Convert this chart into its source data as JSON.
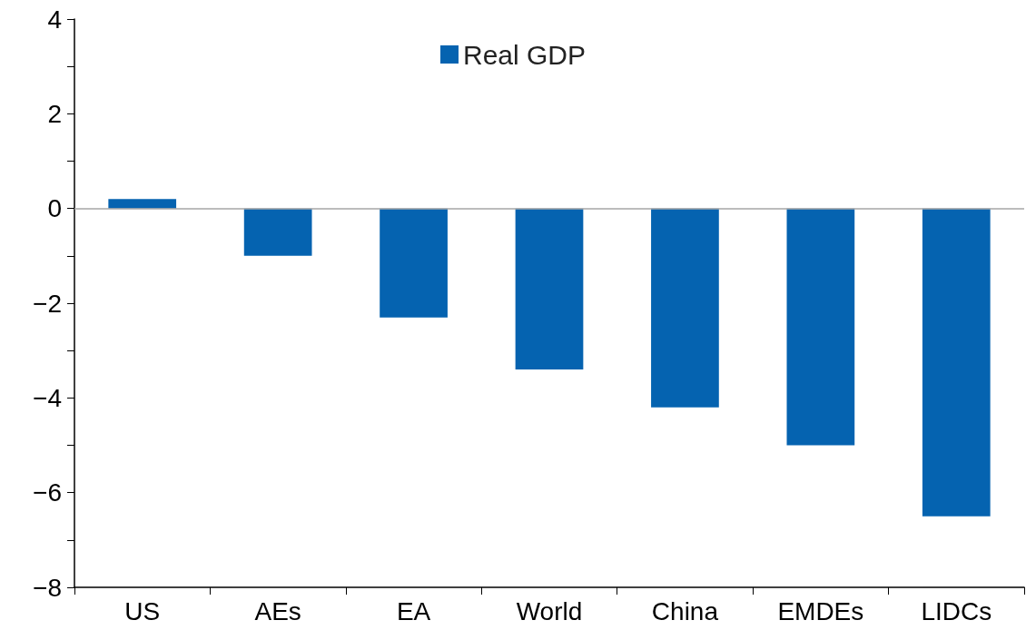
{
  "chart_data": {
    "type": "bar",
    "categories": [
      "US",
      "AEs",
      "EA",
      "World",
      "China",
      "EMDEs",
      "LIDCs"
    ],
    "series": [
      {
        "name": "Real GDP",
        "color": "#0563b0",
        "values": [
          0.2,
          -1.0,
          -2.3,
          -3.4,
          -4.2,
          -5.0,
          -6.5
        ]
      }
    ],
    "ylim": [
      -8,
      4
    ],
    "yticks": [
      -8,
      {
        "value": -7,
        "label": null
      },
      -6,
      {
        "value": -5,
        "label": null
      },
      -4,
      {
        "value": -3,
        "label": null
      },
      -2,
      {
        "value": -1,
        "label": null
      },
      0,
      {
        "value": 1,
        "label": null
      },
      2,
      {
        "value": 3,
        "label": null
      },
      4
    ],
    "ref_lines": [
      {
        "axis": "y",
        "value": 0,
        "color": "#a6a6a6"
      }
    ],
    "legend": "top",
    "grid": false
  }
}
